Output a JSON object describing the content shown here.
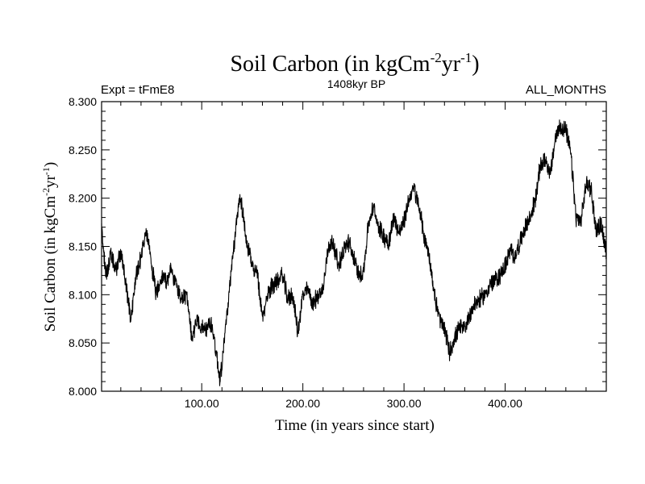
{
  "chart_data": {
    "type": "line",
    "title": "Soil Carbon (in kgCm",
    "title_sup1": "-2",
    "title_mid": "yr",
    "title_sup2": "-1",
    "title_end": ")",
    "subtitle": "1408kyr BP",
    "left_label": "Expt = tFmE8",
    "right_label": "ALL_MONTHS",
    "xlabel": "Time (in years since start)",
    "ylabel": "Soil Carbon (in kgCm",
    "ylabel_sup1": "-2",
    "ylabel_mid": "yr",
    "ylabel_sup2": "-1",
    "ylabel_end": ")",
    "xlim": [
      1,
      500
    ],
    "ylim": [
      8.0,
      8.3
    ],
    "x_ticks": [
      100,
      200,
      300,
      400
    ],
    "x_tick_labels": [
      "100.00",
      "200.00",
      "300.00",
      "400.00"
    ],
    "y_ticks": [
      8.0,
      8.05,
      8.1,
      8.15,
      8.2,
      8.25,
      8.3
    ],
    "y_tick_labels": [
      "8.000",
      "8.050",
      "8.100",
      "8.150",
      "8.200",
      "8.250",
      "8.300"
    ],
    "series": [
      {
        "name": "Soil Carbon",
        "color": "#000000",
        "x": [
          1,
          5,
          10,
          15,
          20,
          25,
          30,
          35,
          40,
          45,
          50,
          55,
          60,
          65,
          70,
          75,
          80,
          85,
          90,
          95,
          100,
          105,
          110,
          115,
          118,
          120,
          125,
          130,
          135,
          138,
          140,
          145,
          150,
          155,
          160,
          165,
          170,
          175,
          180,
          185,
          190,
          195,
          200,
          205,
          210,
          215,
          220,
          225,
          230,
          235,
          240,
          245,
          250,
          255,
          260,
          265,
          270,
          275,
          280,
          285,
          290,
          295,
          300,
          305,
          310,
          315,
          320,
          325,
          330,
          335,
          340,
          345,
          350,
          355,
          360,
          365,
          370,
          375,
          380,
          385,
          390,
          395,
          400,
          405,
          410,
          415,
          420,
          425,
          430,
          435,
          440,
          445,
          450,
          455,
          460,
          465,
          470,
          475,
          480,
          485,
          490,
          495,
          500
        ],
        "y": [
          8.17,
          8.12,
          8.14,
          8.125,
          8.145,
          8.11,
          8.075,
          8.12,
          8.14,
          8.165,
          8.135,
          8.1,
          8.12,
          8.115,
          8.125,
          8.11,
          8.095,
          8.1,
          8.055,
          8.075,
          8.065,
          8.065,
          8.07,
          8.035,
          8.012,
          8.03,
          8.08,
          8.13,
          8.18,
          8.205,
          8.19,
          8.15,
          8.13,
          8.12,
          8.075,
          8.1,
          8.11,
          8.115,
          8.12,
          8.095,
          8.1,
          8.06,
          8.1,
          8.105,
          8.09,
          8.1,
          8.105,
          8.15,
          8.155,
          8.13,
          8.145,
          8.155,
          8.14,
          8.12,
          8.125,
          8.175,
          8.19,
          8.17,
          8.16,
          8.155,
          8.18,
          8.165,
          8.175,
          8.2,
          8.21,
          8.19,
          8.16,
          8.14,
          8.1,
          8.075,
          8.065,
          8.04,
          8.055,
          8.065,
          8.065,
          8.08,
          8.09,
          8.095,
          8.1,
          8.11,
          8.115,
          8.12,
          8.13,
          8.145,
          8.14,
          8.155,
          8.17,
          8.18,
          8.2,
          8.235,
          8.24,
          8.225,
          8.265,
          8.275,
          8.27,
          8.245,
          8.18,
          8.175,
          8.215,
          8.21,
          8.165,
          8.175,
          8.14
        ]
      }
    ]
  }
}
